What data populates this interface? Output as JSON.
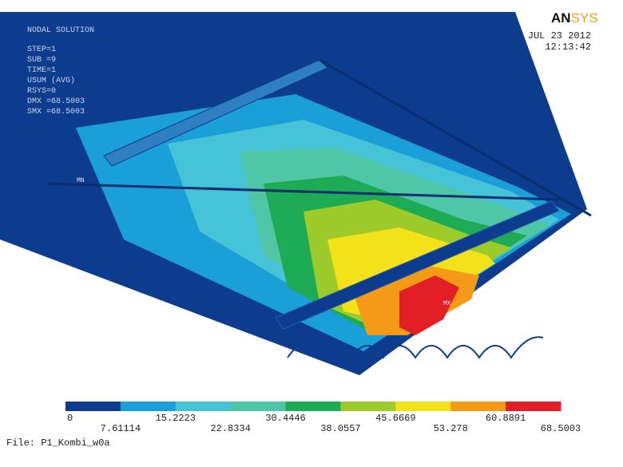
{
  "header": {
    "title": "NODAL SOLUTION",
    "lines": [
      "STEP=1",
      "SUB =9",
      "TIME=1",
      "USUM      (AVG)",
      "RSYS=0",
      "DMX =68.5003",
      "SMX =68.5003"
    ]
  },
  "logo": {
    "part1": "AN",
    "part2": "SYS"
  },
  "date": "JUL 23 2012",
  "time": "12:13:42",
  "markers": {
    "min": "MN",
    "max": "MX"
  },
  "legend": {
    "colors": [
      "#0d3c8e",
      "#1a9fd9",
      "#46c3d6",
      "#4fc6a6",
      "#1dab55",
      "#9ccb2b",
      "#f3e21a",
      "#f49a17",
      "#e21f26"
    ],
    "labels": [
      "0",
      "7.61114",
      "15.2223",
      "22.8334",
      "30.4446",
      "38.0557",
      "45.6669",
      "53.278",
      "60.8891",
      "68.5003"
    ]
  },
  "file": "File: P1_Kombi_w0a"
}
